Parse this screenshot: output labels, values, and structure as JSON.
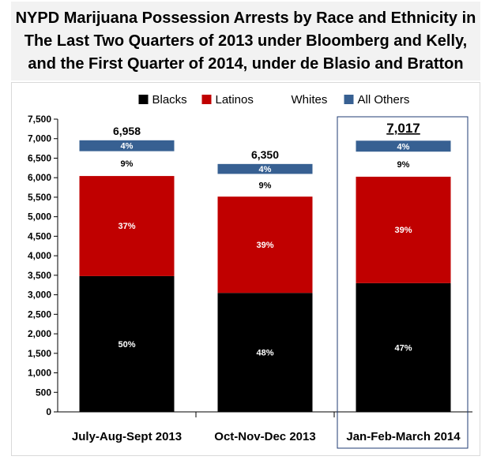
{
  "chart_data": {
    "type": "bar",
    "stacked": true,
    "title_lines": [
      "NYPD Marijuana Possession Arrests by Race and Ethnicity in",
      "The Last Two Quarters of 2013 under Bloomberg and Kelly,",
      "and the First Quarter of 2014, under de Blasio and Bratton"
    ],
    "categories": [
      "July-Aug-Sept 2013",
      "Oct-Nov-Dec 2013",
      "Jan-Feb-March 2014"
    ],
    "totals": [
      6958,
      6350,
      7017
    ],
    "total_labels": [
      "6,958",
      "6,350",
      "7,017"
    ],
    "highlighted_category": 2,
    "series": [
      {
        "name": "Blacks",
        "color": "#000000",
        "values": [
          3479,
          3048,
          3298
        ],
        "labels": [
          "50%",
          "48%",
          "47%"
        ],
        "label_color": "#ffffff"
      },
      {
        "name": "Latinos",
        "color": "#c00000",
        "values": [
          2574,
          2477,
          2737
        ],
        "labels": [
          "37%",
          "39%",
          "39%"
        ],
        "label_color": "#ffffff"
      },
      {
        "name": "Whites",
        "color": "#ffffff",
        "values": [
          626,
          572,
          632
        ],
        "labels": [
          "9%",
          "9%",
          "9%"
        ],
        "label_color": "#000000"
      },
      {
        "name": "All Others",
        "color": "#376092",
        "values": [
          279,
          254,
          281
        ],
        "labels": [
          "4%",
          "4%",
          "4%"
        ],
        "label_color": "#ffffff"
      }
    ],
    "yticks": [
      "0",
      "500",
      "1,000",
      "1,500",
      "2,000",
      "2,500",
      "3,000",
      "3,500",
      "4,000",
      "4,500",
      "5,000",
      "5,500",
      "6,000",
      "6,500",
      "7,000",
      "7,500"
    ],
    "ylim": [
      0,
      7500
    ],
    "legend_position": "top"
  }
}
